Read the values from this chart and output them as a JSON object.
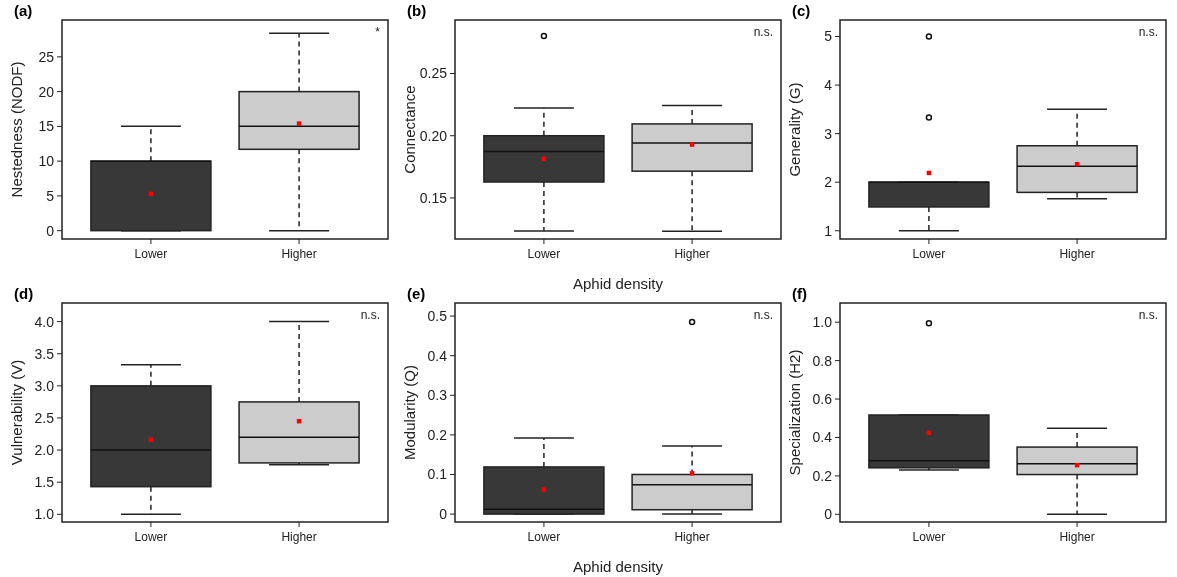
{
  "chart_data": [
    {
      "type": "box",
      "title": "(a)",
      "ylabel": "Nestedness (NODF)",
      "categories": [
        "Lower",
        "Higher"
      ],
      "colors": [
        "#383838",
        "#cccccc"
      ],
      "ylim": [
        -1.2,
        30.3
      ],
      "yticks": [
        0,
        5,
        10,
        15,
        20,
        25
      ],
      "annotations": [
        "*"
      ],
      "boxes": [
        {
          "low": 0,
          "q1": 0,
          "median": 10,
          "q3": 10,
          "high": 15,
          "mean": 5.3
        },
        {
          "low": 0,
          "q1": 11.7,
          "median": 15,
          "q3": 20,
          "high": 28.4,
          "mean": 15.4
        }
      ]
    },
    {
      "type": "box",
      "title": "(b)",
      "ylabel": "Connectance",
      "xlabel": "Aphid density",
      "categories": [
        "Lower",
        "Higher"
      ],
      "colors": [
        "#383838",
        "#cccccc"
      ],
      "ylim": [
        0.117,
        0.293
      ],
      "yticks": [
        {
          "value": 0.15,
          "label": "0.15"
        },
        {
          "value": 0.2,
          "label": "0.20"
        },
        {
          "value": 0.25,
          "label": "0.25"
        }
      ],
      "annotations": [
        "n.s."
      ],
      "boxes": [
        {
          "low": 0.1235,
          "q1": 0.1628,
          "median": 0.1873,
          "q3": 0.2,
          "high": 0.2222,
          "mean": 0.1815,
          "outliers": [
            0.2802
          ]
        },
        {
          "low": 0.1232,
          "q1": 0.1715,
          "median": 0.1942,
          "q3": 0.2095,
          "high": 0.2243,
          "mean": 0.1929
        }
      ]
    },
    {
      "type": "box",
      "title": "(c)",
      "ylabel": "Generality (G)",
      "categories": [
        "Lower",
        "Higher"
      ],
      "colors": [
        "#383838",
        "#cccccc"
      ],
      "ylim": [
        0.83,
        5.34
      ],
      "yticks": [
        1,
        2,
        3,
        4,
        5
      ],
      "annotations": [
        "n.s."
      ],
      "boxes": [
        {
          "low": 1,
          "q1": 1.49,
          "median": 2,
          "q3": 2,
          "high": 2,
          "mean": 2.19,
          "outliers": [
            3.33,
            5
          ]
        },
        {
          "low": 1.66,
          "q1": 1.79,
          "median": 2.33,
          "q3": 2.75,
          "high": 3.5,
          "mean": 2.37
        }
      ]
    },
    {
      "type": "box",
      "title": "(d)",
      "ylabel": "Vulnerability (V)",
      "categories": [
        "Lower",
        "Higher"
      ],
      "colors": [
        "#383838",
        "#cccccc"
      ],
      "ylim": [
        0.88,
        4.29
      ],
      "yticks": [
        {
          "value": 1,
          "label": "1.0"
        },
        {
          "value": 1.5,
          "label": "1.5"
        },
        {
          "value": 2,
          "label": "2.0"
        },
        {
          "value": 2.5,
          "label": "2.5"
        },
        {
          "value": 3,
          "label": "3.0"
        },
        {
          "value": 3.5,
          "label": "3.5"
        },
        {
          "value": 4,
          "label": "4.0"
        }
      ],
      "annotations": [
        "n.s."
      ],
      "boxes": [
        {
          "low": 1,
          "q1": 1.43,
          "median": 2,
          "q3": 3,
          "high": 3.33,
          "mean": 2.16
        },
        {
          "low": 1.77,
          "q1": 1.8,
          "median": 2.2,
          "q3": 2.75,
          "high": 4,
          "mean": 2.45
        }
      ]
    },
    {
      "type": "box",
      "title": "(e)",
      "ylabel": "Modularity (Q)",
      "xlabel": "Aphid density",
      "categories": [
        "Lower",
        "Higher"
      ],
      "colors": [
        "#383838",
        "#cccccc"
      ],
      "ylim": [
        -0.02,
        0.533
      ],
      "yticks": [
        0,
        0.1,
        0.2,
        0.3,
        0.4,
        0.5
      ],
      "annotations": [
        "n.s."
      ],
      "boxes": [
        {
          "low": 0,
          "q1": 0,
          "median": 0.012,
          "q3": 0.119,
          "high": 0.192,
          "mean": 0.062
        },
        {
          "low": 0,
          "q1": 0.011,
          "median": 0.074,
          "q3": 0.1,
          "high": 0.172,
          "mean": 0.103,
          "outliers": [
            0.485
          ]
        }
      ]
    },
    {
      "type": "box",
      "title": "(f)",
      "ylabel": "Specialization (H2)",
      "categories": [
        "Lower",
        "Higher"
      ],
      "colors": [
        "#383838",
        "#cccccc"
      ],
      "ylim": [
        -0.04,
        1.1
      ],
      "yticks": [
        0,
        0.2,
        0.4,
        0.6,
        0.8,
        {
          "value": 1,
          "label": "1.0"
        }
      ],
      "annotations": [
        "n.s."
      ],
      "boxes": [
        {
          "low": 0.231,
          "q1": 0.242,
          "median": 0.279,
          "q3": 0.517,
          "high": 0.517,
          "mean": 0.424,
          "outliers": [
            0.995
          ]
        },
        {
          "low": 0,
          "q1": 0.207,
          "median": 0.263,
          "q3": 0.35,
          "high": 0.448,
          "mean": 0.256
        }
      ]
    }
  ]
}
